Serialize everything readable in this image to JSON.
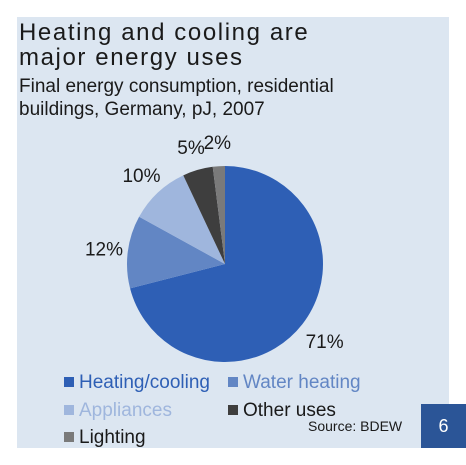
{
  "title_line1": "Heating and cooling are",
  "title_line2": "major energy uses",
  "subtitle": "Final energy consumption, residential buildings, Germany, pJ, 2007",
  "source": "Source: BDEW",
  "page_number": "6",
  "chart_data": {
    "type": "pie",
    "slices": [
      {
        "label": "Heating/cooling",
        "value": 71,
        "display": "71%",
        "color": "#2e5fb5"
      },
      {
        "label": "Water heating",
        "value": 12,
        "display": "12%",
        "color": "#6286c4"
      },
      {
        "label": "Appliances",
        "value": 10,
        "display": "10%",
        "color": "#9fb6dd"
      },
      {
        "label": "Other uses",
        "value": 5,
        "display": "5%",
        "color": "#3e3e3e"
      },
      {
        "label": "Lighting",
        "value": 2,
        "display": "2%",
        "color": "#7a7a7a"
      }
    ],
    "legend_position": "bottom"
  },
  "colors": {
    "panel": "#dce6f1",
    "page_badge": "#2b5597"
  }
}
